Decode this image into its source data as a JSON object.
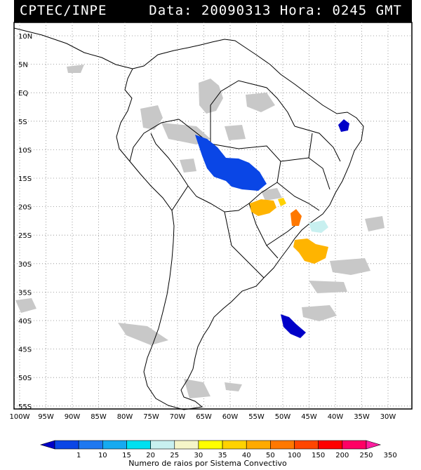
{
  "header": {
    "left": "CPTEC/INPE",
    "right": "Data: 20090313 Hora: 0245 GMT"
  },
  "axes": {
    "lat_labels": [
      "10N",
      "5N",
      "EQ",
      "5S",
      "10S",
      "15S",
      "20S",
      "25S",
      "30S",
      "35S",
      "40S",
      "45S",
      "50S",
      "55S"
    ],
    "lon_labels": [
      "100W",
      "95W",
      "90W",
      "85W",
      "80W",
      "75W",
      "70W",
      "65W",
      "60W",
      "55W",
      "50W",
      "45W",
      "40W",
      "35W",
      "30W"
    ]
  },
  "legend": {
    "title": "Numero de raios por Sistema Convectivo",
    "labels": [
      "1",
      "10",
      "15",
      "20",
      "25",
      "30",
      "35",
      "40",
      "50",
      "100",
      "150",
      "200",
      "250",
      "350"
    ],
    "colors": [
      "#0000c8",
      "#0a46e6",
      "#1e78f0",
      "#16aaf0",
      "#00e0f0",
      "#c8f0f0",
      "#f5f5c8",
      "#ffff00",
      "#ffd200",
      "#ffaa00",
      "#ff7800",
      "#ff4600",
      "#ff0000",
      "#ff0064",
      "#ff1ea0"
    ]
  },
  "map_colors": {
    "cloud": "#c8c8c8",
    "land_border": "#000000",
    "grid": "#888888"
  },
  "systems": [
    {
      "name": "central-brazil",
      "color": "#0a46e6"
    },
    {
      "name": "northeast-coast",
      "color": "#0000c8"
    },
    {
      "name": "south-atlantic-41s",
      "color": "#0000c8"
    },
    {
      "name": "paraguay-mato-grosso",
      "color": "#ffb400"
    },
    {
      "name": "minas-gerais",
      "color": "#ffd200"
    },
    {
      "name": "sao-paulo",
      "color": "#ff7800"
    },
    {
      "name": "rio-offshore",
      "color": "#c8f0f0"
    },
    {
      "name": "south-brazil-offshore",
      "color": "#ffb400"
    }
  ]
}
